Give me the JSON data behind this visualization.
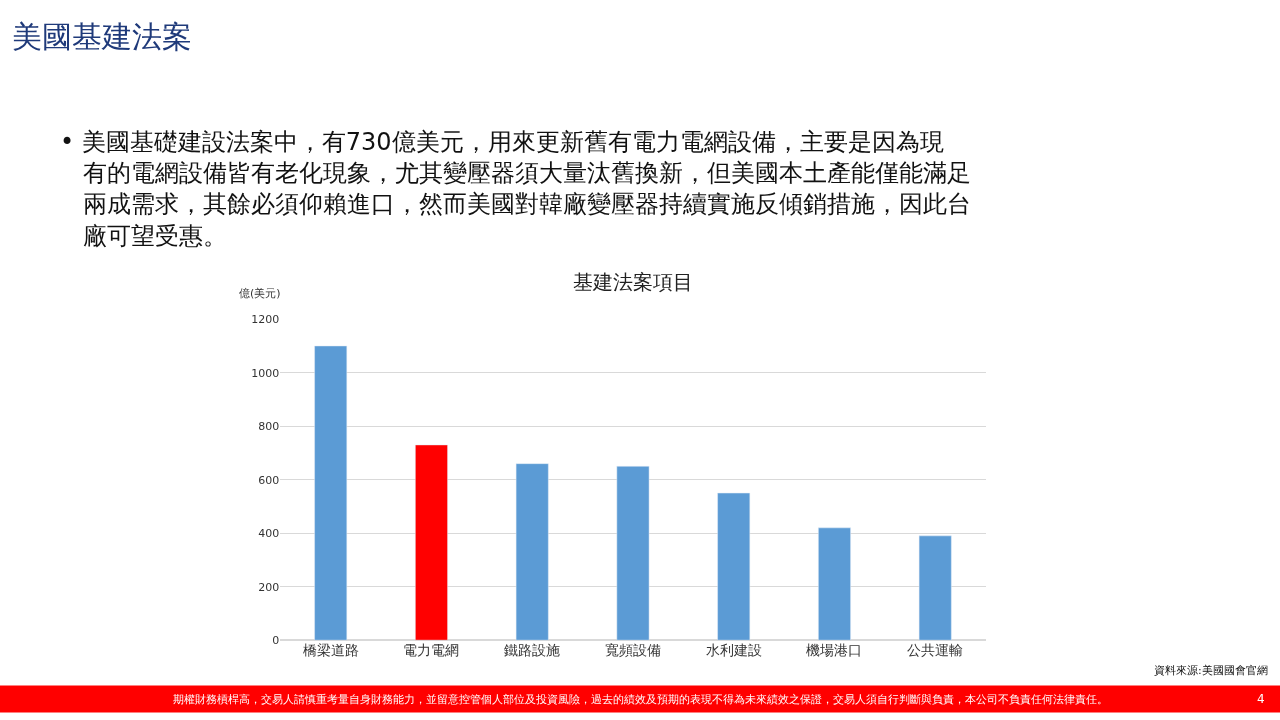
{
  "chart_data": {
    "type": "bar",
    "title": "基建法案項目",
    "ylabel": "億(美元)",
    "categories": [
      "橋梁道路",
      "電力電網",
      "鐵路設施",
      "寬頻設備",
      "水利建設",
      "機場港口",
      "公共運輸"
    ],
    "values": [
      1100,
      730,
      660,
      650,
      550,
      420,
      390
    ],
    "colors": [
      "#5b9bd5",
      "#ff0000",
      "#5b9bd5",
      "#5b9bd5",
      "#5b9bd5",
      "#5b9bd5",
      "#5b9bd5"
    ],
    "ylim": [
      0,
      1200
    ],
    "yticks": [
      0,
      200,
      400,
      600,
      800,
      1000,
      1200
    ],
    "grid": "y",
    "legend": false,
    "annotations": [
      "美國基建法案",
      "• 美國基礎建設法案中，有730億美元，用來更新舊有電力電網設備，主要是因為現有的電網設備皆有老化現象，尤其變壓器須大量汰舊換新，但美國本土產能僅能滿足兩成需求，其餘必須仰賴進口，然而美國對韓廠變壓器持續實施反傾銷措施，因此台廠可望受惠。",
      "資料來源:美國國會官網",
      "期權財務槓桿高，交易人請慎重考量自身財務能力，並留意控管個人部位及投資風險，過去的績效及預期的表現不得為未來績效之保證，交易人須自行判斷與負責，本公司不負責任何法律責任。",
      "4"
    ]
  }
}
